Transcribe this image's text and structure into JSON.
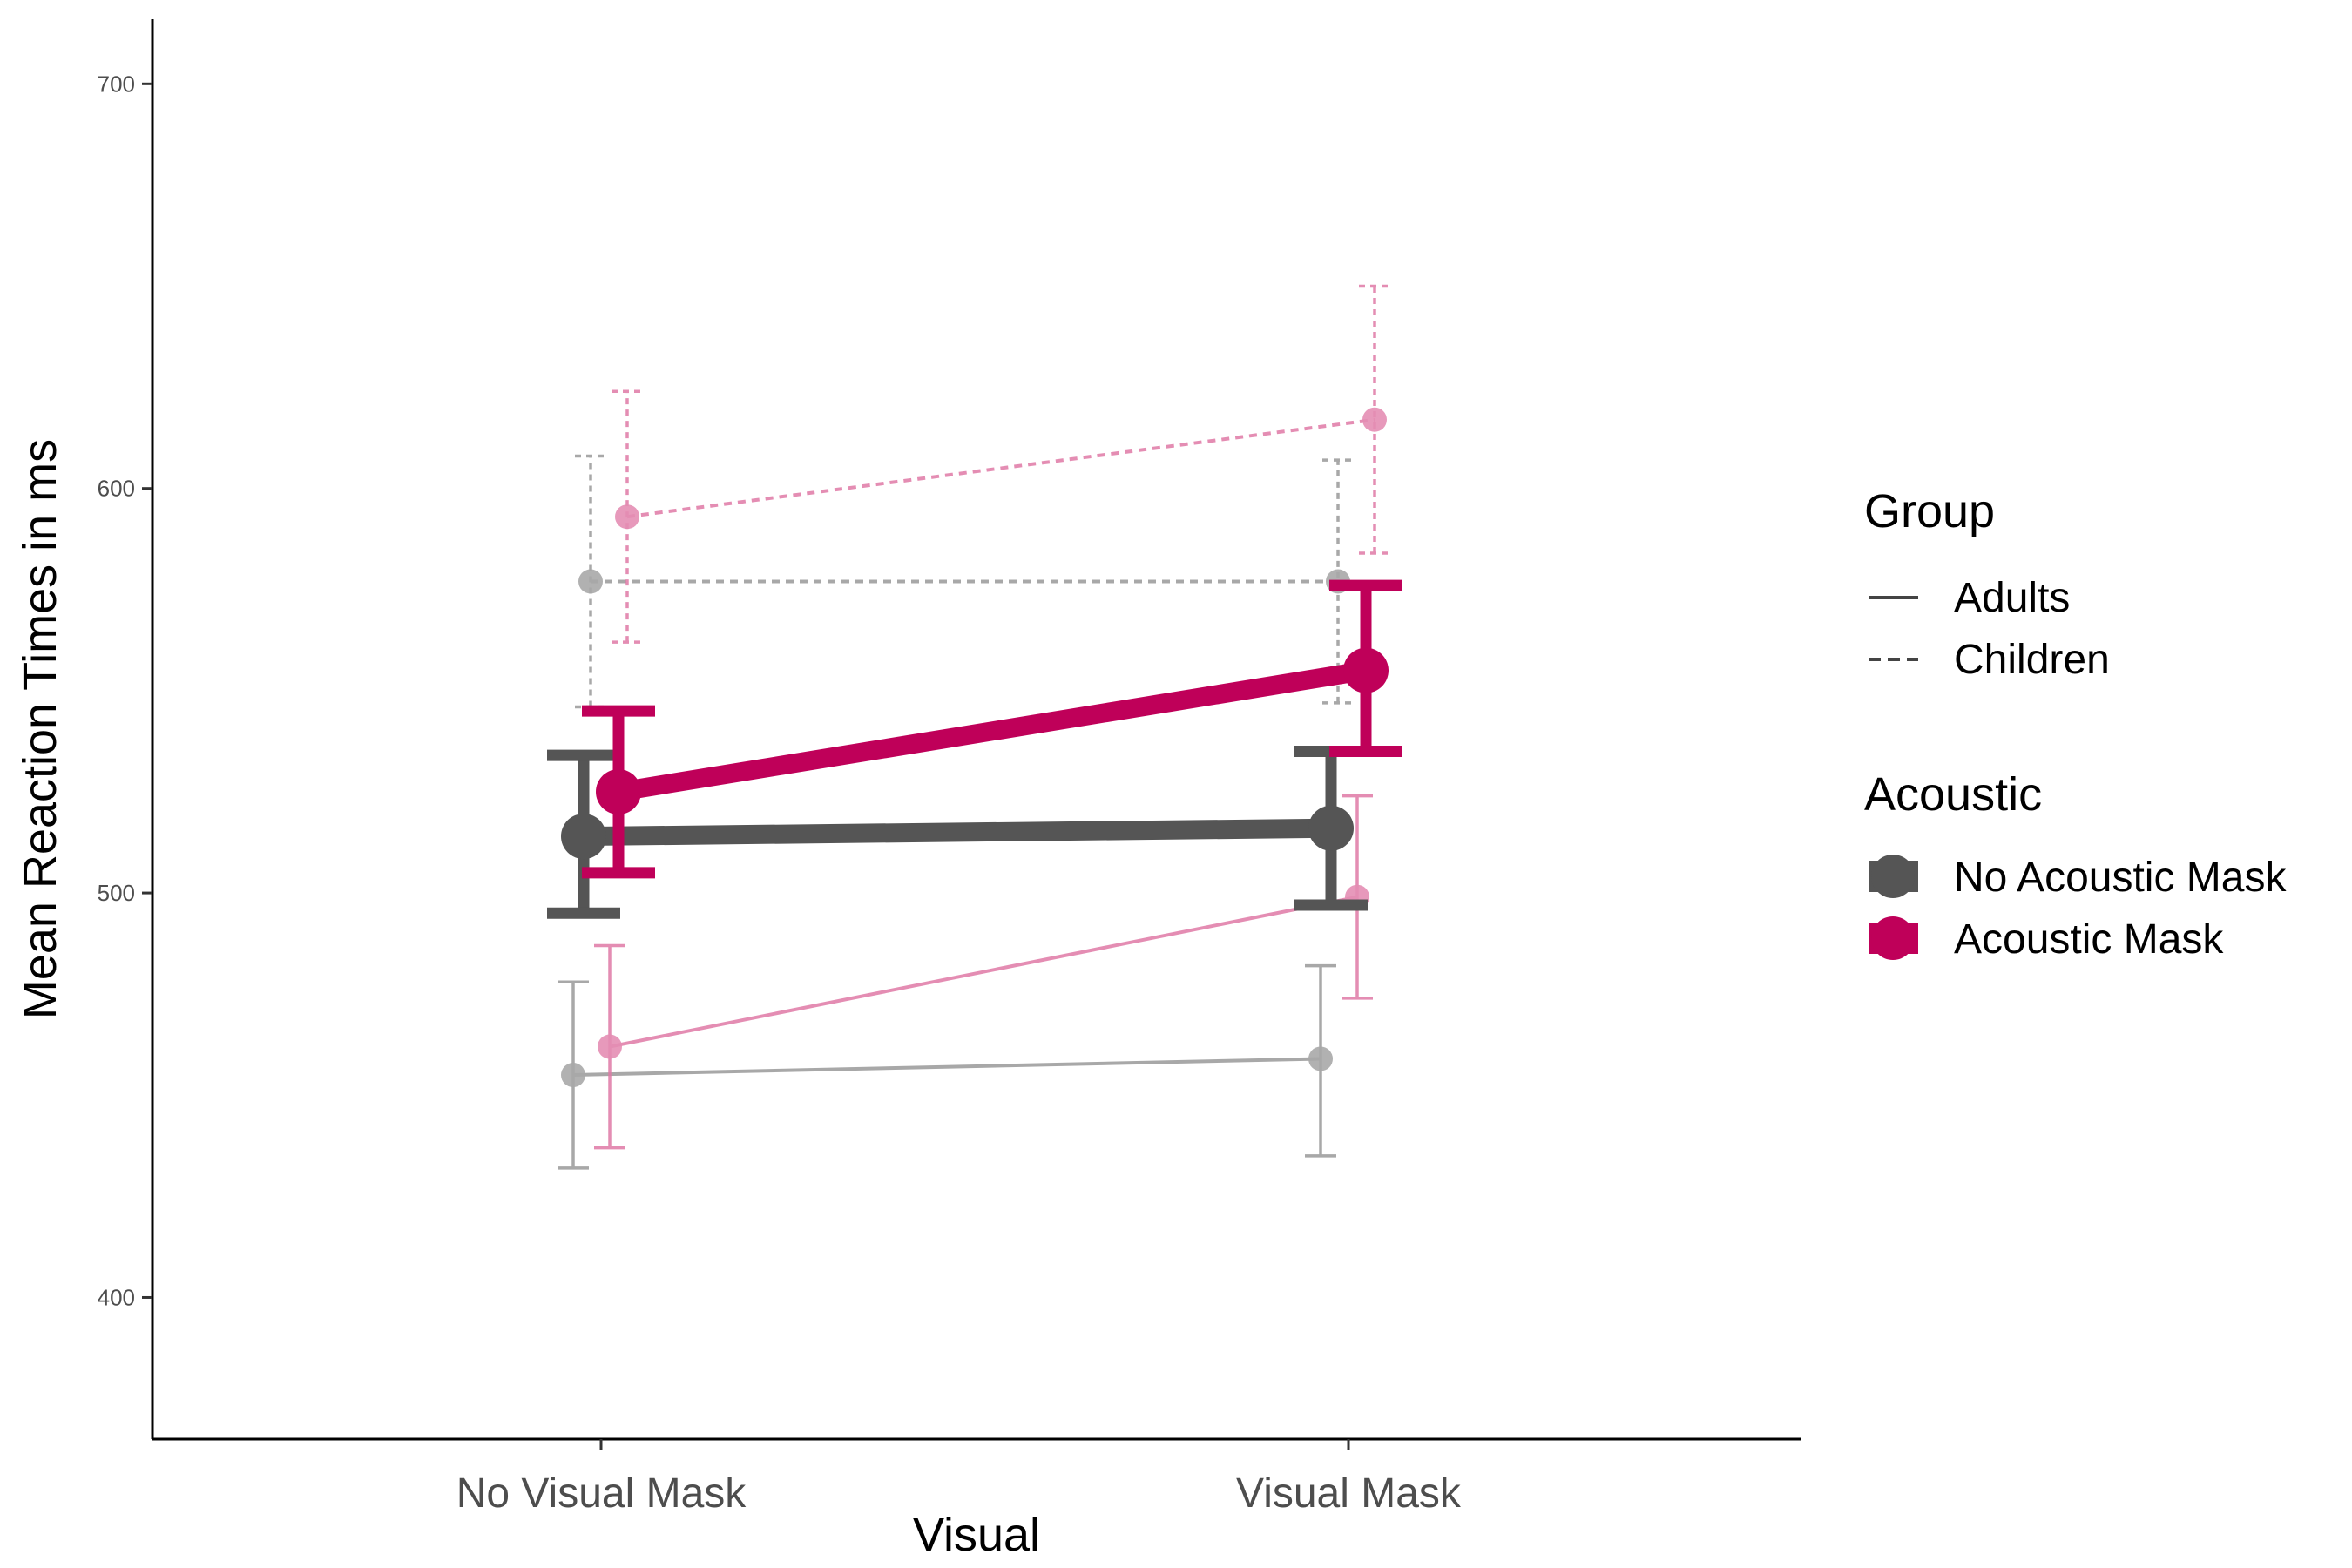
{
  "chart_data": {
    "type": "line",
    "title": "",
    "xlabel": "Visual",
    "ylabel": "Mean Reaction Times in ms",
    "categories": [
      "No Visual Mask",
      "Visual Mask"
    ],
    "ylim": [
      365,
      716
    ],
    "yticks": [
      400,
      500,
      600,
      700
    ],
    "grid": false,
    "legend_position": "right",
    "legends": {
      "group": {
        "title": "Group",
        "items": [
          {
            "label": "Adults",
            "linestyle": "solid"
          },
          {
            "label": "Children",
            "linestyle": "dashed"
          }
        ]
      },
      "acoustic": {
        "title": "Acoustic",
        "items": [
          {
            "label": "No Acoustic Mask",
            "color": "#555555"
          },
          {
            "label": "Acoustic Mask",
            "color": "#bf0059"
          }
        ]
      }
    },
    "series": [
      {
        "group": "Children",
        "acoustic": "No Acoustic Mask",
        "kind": "individual",
        "color": "#999999",
        "linestyle": "dashed",
        "y": [
          577,
          577
        ],
        "ymin": [
          546,
          547
        ],
        "ymax": [
          608,
          607
        ]
      },
      {
        "group": "Children",
        "acoustic": "Acoustic Mask",
        "kind": "individual",
        "color": "#e07aa6",
        "linestyle": "dashed",
        "y": [
          593,
          617
        ],
        "ymin": [
          562,
          584
        ],
        "ymax": [
          624,
          650
        ]
      },
      {
        "group": "Adults",
        "acoustic": "No Acoustic Mask",
        "kind": "individual",
        "color": "#999999",
        "linestyle": "solid",
        "y": [
          455,
          459
        ],
        "ymin": [
          432,
          435
        ],
        "ymax": [
          478,
          482
        ]
      },
      {
        "group": "Adults",
        "acoustic": "Acoustic Mask",
        "kind": "individual",
        "color": "#e07aa6",
        "linestyle": "solid",
        "y": [
          462,
          499
        ],
        "ymin": [
          437,
          474
        ],
        "ymax": [
          487,
          524
        ]
      },
      {
        "group": "Overall",
        "acoustic": "No Acoustic Mask",
        "kind": "mean",
        "color": "#555555",
        "linestyle": "solid",
        "y": [
          514,
          516
        ],
        "ymin": [
          495,
          497
        ],
        "ymax": [
          534,
          535
        ]
      },
      {
        "group": "Overall",
        "acoustic": "Acoustic Mask",
        "kind": "mean",
        "color": "#bf0059",
        "linestyle": "solid",
        "y": [
          525,
          555
        ],
        "ymin": [
          505,
          535
        ],
        "ymax": [
          545,
          576
        ]
      }
    ]
  }
}
